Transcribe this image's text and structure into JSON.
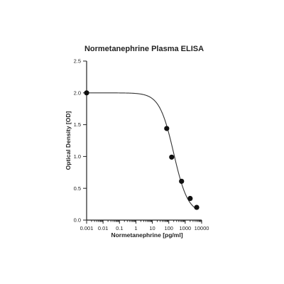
{
  "chart_data": {
    "type": "scatter",
    "title": "Normetanephrine Plasma ELISA",
    "xlabel": "Normetanephrine [pg/ml]",
    "ylabel": "Optical Density [OD]",
    "xscale": "log",
    "xlim": [
      0.001,
      10000
    ],
    "ylim": [
      0.0,
      2.5
    ],
    "xticks": [
      "0.001",
      "0.01",
      "0.1",
      "1",
      "10",
      "100",
      "1000",
      "10000"
    ],
    "xtick_values": [
      0.001,
      0.01,
      0.1,
      1,
      10,
      100,
      1000,
      10000
    ],
    "yticks": [
      "0.0",
      "0.5",
      "1.0",
      "1.5",
      "2.0",
      "2.5"
    ],
    "ytick_values": [
      0.0,
      0.5,
      1.0,
      1.5,
      2.0,
      2.5
    ],
    "grid": false,
    "legend": "none",
    "series": [
      {
        "points": [
          {
            "x": 0.001,
            "y": 2.0
          },
          {
            "x": 75,
            "y": 1.44
          },
          {
            "x": 150,
            "y": 0.99
          },
          {
            "x": 600,
            "y": 0.61
          },
          {
            "x": 2000,
            "y": 0.34
          },
          {
            "x": 5000,
            "y": 0.2
          }
        ],
        "fit": {
          "type": "4PL",
          "top": 2.0,
          "bottom": 0.1,
          "ec50": 200,
          "hill": 1.0
        }
      }
    ]
  }
}
